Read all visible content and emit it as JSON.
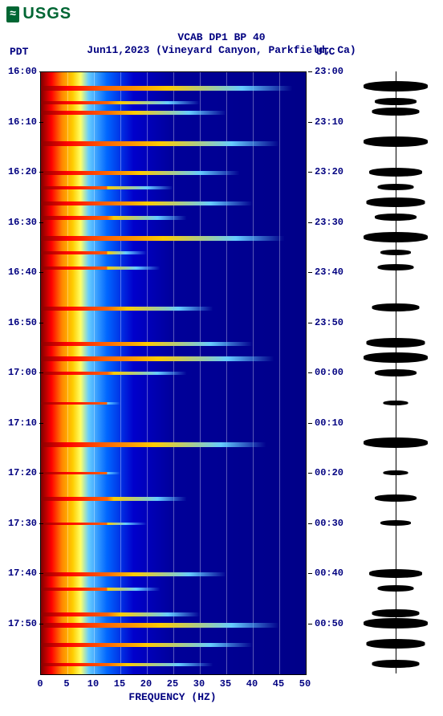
{
  "logo": {
    "wave_glyph": "≈",
    "text": "USGS"
  },
  "title": "VCAB DP1 BP 40",
  "subtitle": "Jun11,2023 (Vineyard Canyon, Parkfield, Ca)",
  "tz_left": "PDT",
  "tz_right": "UTC",
  "x_label": "FREQUENCY (HZ)",
  "x_range": [
    0,
    50
  ],
  "x_ticks": [
    0,
    5,
    10,
    15,
    20,
    25,
    30,
    35,
    40,
    45,
    50
  ],
  "grid_x": [
    5,
    10,
    15,
    20,
    25,
    30,
    35,
    40,
    45
  ],
  "y_range_minutes": 120,
  "y_ticks_left": [
    "16:00",
    "16:10",
    "16:20",
    "16:30",
    "16:40",
    "16:50",
    "17:00",
    "17:10",
    "17:20",
    "17:30",
    "17:40",
    "17:50"
  ],
  "y_ticks_right": [
    "23:00",
    "23:10",
    "23:20",
    "23:30",
    "23:40",
    "23:50",
    "00:00",
    "00:10",
    "00:20",
    "00:30",
    "00:40",
    "00:50"
  ],
  "colors": {
    "title": "#000080",
    "logo": "#006633",
    "bg": "#ffffff",
    "spec_gradient": [
      "#800000",
      "#ff0000",
      "#ff8800",
      "#ffcc00",
      "#ffff66",
      "#66ccff",
      "#0066ff",
      "#0000cc",
      "#000099",
      "#000088"
    ],
    "grid": "rgba(255,255,255,0.35)",
    "waveform": "#000000"
  },
  "events": [
    {
      "t": 3,
      "intensity": 1.0,
      "width": 0.95
    },
    {
      "t": 6,
      "intensity": 0.6,
      "width": 0.6
    },
    {
      "t": 8,
      "intensity": 0.7,
      "width": 0.7
    },
    {
      "t": 14,
      "intensity": 1.0,
      "width": 0.9
    },
    {
      "t": 20,
      "intensity": 0.8,
      "width": 0.75
    },
    {
      "t": 23,
      "intensity": 0.5,
      "width": 0.5
    },
    {
      "t": 26,
      "intensity": 0.9,
      "width": 0.8
    },
    {
      "t": 29,
      "intensity": 0.6,
      "width": 0.55
    },
    {
      "t": 33,
      "intensity": 1.0,
      "width": 0.92
    },
    {
      "t": 36,
      "intensity": 0.4,
      "width": 0.4
    },
    {
      "t": 39,
      "intensity": 0.5,
      "width": 0.45
    },
    {
      "t": 47,
      "intensity": 0.7,
      "width": 0.65
    },
    {
      "t": 54,
      "intensity": 0.9,
      "width": 0.8
    },
    {
      "t": 57,
      "intensity": 1.0,
      "width": 0.88
    },
    {
      "t": 60,
      "intensity": 0.6,
      "width": 0.55
    },
    {
      "t": 66,
      "intensity": 0.3,
      "width": 0.3
    },
    {
      "t": 74,
      "intensity": 1.0,
      "width": 0.85
    },
    {
      "t": 80,
      "intensity": 0.3,
      "width": 0.3
    },
    {
      "t": 85,
      "intensity": 0.6,
      "width": 0.55
    },
    {
      "t": 90,
      "intensity": 0.4,
      "width": 0.4
    },
    {
      "t": 100,
      "intensity": 0.8,
      "width": 0.7
    },
    {
      "t": 103,
      "intensity": 0.5,
      "width": 0.45
    },
    {
      "t": 108,
      "intensity": 0.7,
      "width": 0.6
    },
    {
      "t": 110,
      "intensity": 1.0,
      "width": 0.9
    },
    {
      "t": 114,
      "intensity": 0.9,
      "width": 0.8
    },
    {
      "t": 118,
      "intensity": 0.7,
      "width": 0.65
    }
  ],
  "fontsize": {
    "title": 13,
    "ticks": 12,
    "label": 13
  }
}
